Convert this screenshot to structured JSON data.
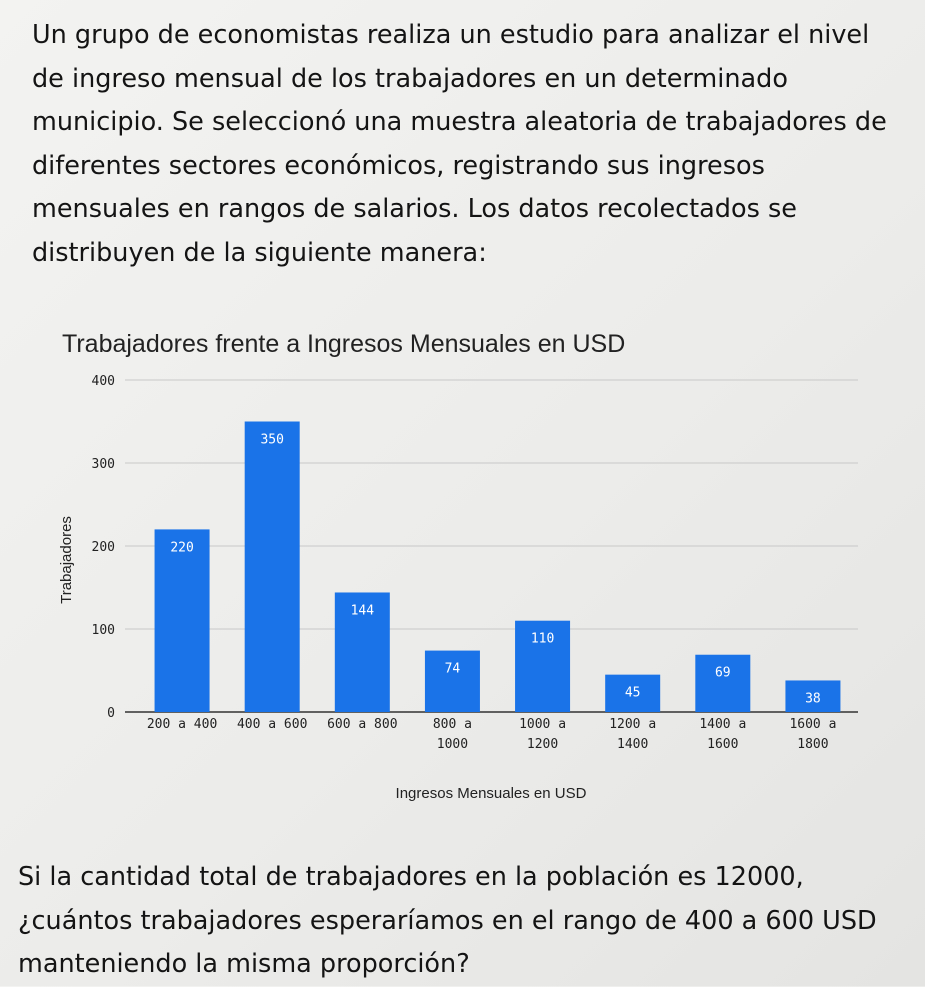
{
  "problem": {
    "intro": "Un grupo de economistas realiza un estudio para analizar el nivel de ingreso mensual de los trabajadores en un determinado municipio. Se seleccionó una muestra aleatoria de trabajadores de diferentes sectores económicos, registrando sus ingresos mensuales en rangos de salarios. Los datos recolectados se distribuyen de la siguiente manera:",
    "question": "Si la cantidad total de trabajadores en la población es 12000, ¿cuántos trabajadores esperaríamos en el rango de 400 a 600 USD manteniendo la misma proporción?"
  },
  "chart_data": {
    "type": "bar",
    "title": "Trabajadores frente a Ingresos Mensuales en USD",
    "xlabel": "Ingresos Mensuales en USD",
    "ylabel": "Trabajadores",
    "categories": [
      [
        "200 a 400"
      ],
      [
        "400 a 600"
      ],
      [
        "600 a 800"
      ],
      [
        "800 a",
        "1000"
      ],
      [
        "1000 a",
        "1200"
      ],
      [
        "1200 a",
        "1400"
      ],
      [
        "1400 a",
        "1600"
      ],
      [
        "1600 a",
        "1800"
      ]
    ],
    "values": [
      220,
      350,
      144,
      74,
      110,
      45,
      69,
      38
    ],
    "ylim": [
      0,
      400
    ],
    "yticks": [
      0,
      100,
      200,
      300,
      400
    ],
    "grid": true,
    "bar_color": "#1a73e8",
    "data_labels": true
  }
}
